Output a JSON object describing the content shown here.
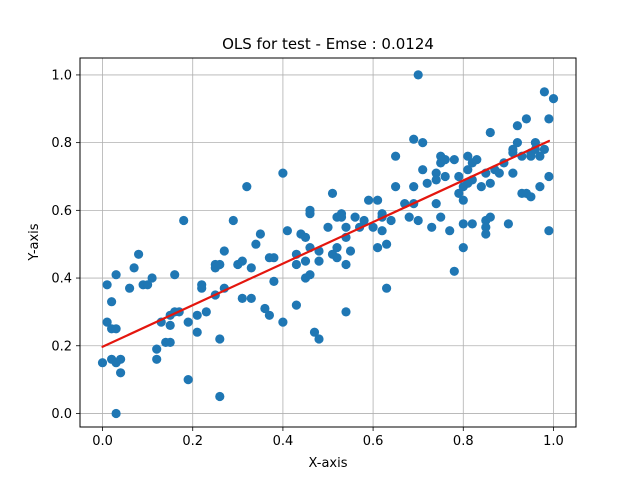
{
  "chart_data": {
    "type": "scatter",
    "title": "OLS for test - Emse : 0.0124",
    "xlabel": "X-axis",
    "ylabel": "Y-axis",
    "xlim": [
      -0.05,
      1.05
    ],
    "ylim": [
      -0.04,
      1.05
    ],
    "xticks": [
      "0.0",
      "0.2",
      "0.4",
      "0.6",
      "0.8",
      "1.0"
    ],
    "yticks": [
      "0.0",
      "0.2",
      "0.4",
      "0.6",
      "0.8",
      "1.0"
    ],
    "grid": true,
    "colors": {
      "points": "#1f77b4",
      "fit_line": "#e4160e",
      "grid": "#b0b0b0"
    },
    "series": [
      {
        "type": "scatter",
        "points": [
          [
            0.0,
            0.15
          ],
          [
            0.01,
            0.38
          ],
          [
            0.01,
            0.27
          ],
          [
            0.02,
            0.25
          ],
          [
            0.02,
            0.33
          ],
          [
            0.02,
            0.16
          ],
          [
            0.03,
            0.41
          ],
          [
            0.03,
            0.25
          ],
          [
            0.03,
            0.0
          ],
          [
            0.03,
            0.15
          ],
          [
            0.04,
            0.16
          ],
          [
            0.04,
            0.12
          ],
          [
            0.06,
            0.37
          ],
          [
            0.07,
            0.43
          ],
          [
            0.08,
            0.47
          ],
          [
            0.09,
            0.38
          ],
          [
            0.1,
            0.38
          ],
          [
            0.11,
            0.4
          ],
          [
            0.12,
            0.16
          ],
          [
            0.12,
            0.19
          ],
          [
            0.13,
            0.27
          ],
          [
            0.14,
            0.21
          ],
          [
            0.15,
            0.21
          ],
          [
            0.15,
            0.26
          ],
          [
            0.15,
            0.29
          ],
          [
            0.16,
            0.41
          ],
          [
            0.16,
            0.3
          ],
          [
            0.17,
            0.3
          ],
          [
            0.18,
            0.57
          ],
          [
            0.19,
            0.27
          ],
          [
            0.19,
            0.1
          ],
          [
            0.21,
            0.29
          ],
          [
            0.21,
            0.24
          ],
          [
            0.22,
            0.38
          ],
          [
            0.22,
            0.37
          ],
          [
            0.23,
            0.3
          ],
          [
            0.25,
            0.44
          ],
          [
            0.25,
            0.43
          ],
          [
            0.25,
            0.35
          ],
          [
            0.26,
            0.44
          ],
          [
            0.26,
            0.22
          ],
          [
            0.26,
            0.05
          ],
          [
            0.27,
            0.48
          ],
          [
            0.27,
            0.37
          ],
          [
            0.29,
            0.57
          ],
          [
            0.3,
            0.44
          ],
          [
            0.31,
            0.45
          ],
          [
            0.31,
            0.34
          ],
          [
            0.32,
            0.67
          ],
          [
            0.33,
            0.43
          ],
          [
            0.33,
            0.34
          ],
          [
            0.34,
            0.5
          ],
          [
            0.35,
            0.53
          ],
          [
            0.36,
            0.31
          ],
          [
            0.37,
            0.46
          ],
          [
            0.37,
            0.29
          ],
          [
            0.38,
            0.46
          ],
          [
            0.38,
            0.39
          ],
          [
            0.4,
            0.71
          ],
          [
            0.4,
            0.27
          ],
          [
            0.41,
            0.54
          ],
          [
            0.43,
            0.47
          ],
          [
            0.43,
            0.44
          ],
          [
            0.43,
            0.32
          ],
          [
            0.44,
            0.53
          ],
          [
            0.45,
            0.52
          ],
          [
            0.45,
            0.45
          ],
          [
            0.45,
            0.4
          ],
          [
            0.46,
            0.6
          ],
          [
            0.46,
            0.59
          ],
          [
            0.46,
            0.49
          ],
          [
            0.46,
            0.41
          ],
          [
            0.47,
            0.24
          ],
          [
            0.48,
            0.22
          ],
          [
            0.48,
            0.48
          ],
          [
            0.48,
            0.45
          ],
          [
            0.5,
            0.55
          ],
          [
            0.51,
            0.47
          ],
          [
            0.51,
            0.65
          ],
          [
            0.52,
            0.58
          ],
          [
            0.52,
            0.49
          ],
          [
            0.52,
            0.46
          ],
          [
            0.53,
            0.59
          ],
          [
            0.53,
            0.58
          ],
          [
            0.54,
            0.55
          ],
          [
            0.54,
            0.52
          ],
          [
            0.54,
            0.44
          ],
          [
            0.54,
            0.3
          ],
          [
            0.55,
            0.48
          ],
          [
            0.56,
            0.58
          ],
          [
            0.57,
            0.55
          ],
          [
            0.58,
            0.57
          ],
          [
            0.59,
            0.63
          ],
          [
            0.6,
            0.55
          ],
          [
            0.61,
            0.49
          ],
          [
            0.61,
            0.63
          ],
          [
            0.62,
            0.59
          ],
          [
            0.62,
            0.58
          ],
          [
            0.62,
            0.54
          ],
          [
            0.63,
            0.37
          ],
          [
            0.63,
            0.5
          ],
          [
            0.64,
            0.57
          ],
          [
            0.65,
            0.67
          ],
          [
            0.65,
            0.76
          ],
          [
            0.67,
            0.62
          ],
          [
            0.68,
            0.58
          ],
          [
            0.69,
            0.67
          ],
          [
            0.69,
            0.81
          ],
          [
            0.69,
            0.62
          ],
          [
            0.7,
            0.57
          ],
          [
            0.7,
            1.0
          ],
          [
            0.71,
            0.72
          ],
          [
            0.71,
            0.8
          ],
          [
            0.72,
            0.68
          ],
          [
            0.73,
            0.55
          ],
          [
            0.74,
            0.71
          ],
          [
            0.74,
            0.69
          ],
          [
            0.74,
            0.62
          ],
          [
            0.75,
            0.76
          ],
          [
            0.75,
            0.74
          ],
          [
            0.75,
            0.58
          ],
          [
            0.76,
            0.7
          ],
          [
            0.76,
            0.75
          ],
          [
            0.77,
            0.54
          ],
          [
            0.78,
            0.75
          ],
          [
            0.78,
            0.42
          ],
          [
            0.79,
            0.65
          ],
          [
            0.79,
            0.7
          ],
          [
            0.8,
            0.63
          ],
          [
            0.8,
            0.49
          ],
          [
            0.8,
            0.67
          ],
          [
            0.8,
            0.56
          ],
          [
            0.81,
            0.72
          ],
          [
            0.81,
            0.76
          ],
          [
            0.81,
            0.68
          ],
          [
            0.82,
            0.56
          ],
          [
            0.82,
            0.69
          ],
          [
            0.82,
            0.74
          ],
          [
            0.83,
            0.75
          ],
          [
            0.84,
            0.67
          ],
          [
            0.85,
            0.71
          ],
          [
            0.85,
            0.57
          ],
          [
            0.85,
            0.55
          ],
          [
            0.85,
            0.53
          ],
          [
            0.86,
            0.68
          ],
          [
            0.86,
            0.83
          ],
          [
            0.86,
            0.58
          ],
          [
            0.87,
            0.72
          ],
          [
            0.88,
            0.71
          ],
          [
            0.89,
            0.74
          ],
          [
            0.9,
            0.56
          ],
          [
            0.91,
            0.71
          ],
          [
            0.91,
            0.77
          ],
          [
            0.91,
            0.78
          ],
          [
            0.92,
            0.8
          ],
          [
            0.92,
            0.85
          ],
          [
            0.93,
            0.65
          ],
          [
            0.93,
            0.76
          ],
          [
            0.94,
            0.65
          ],
          [
            0.94,
            0.87
          ],
          [
            0.95,
            0.77
          ],
          [
            0.95,
            0.64
          ],
          [
            0.95,
            0.76
          ],
          [
            0.96,
            0.78
          ],
          [
            0.96,
            0.8
          ],
          [
            0.97,
            0.67
          ],
          [
            0.97,
            0.76
          ],
          [
            0.98,
            0.95
          ],
          [
            0.98,
            0.78
          ],
          [
            0.99,
            0.7
          ],
          [
            0.99,
            0.87
          ],
          [
            0.99,
            0.54
          ],
          [
            1.0,
            0.93
          ]
        ]
      },
      {
        "type": "line",
        "points": [
          [
            0.0,
            0.197
          ],
          [
            0.99,
            0.805
          ]
        ]
      }
    ]
  }
}
